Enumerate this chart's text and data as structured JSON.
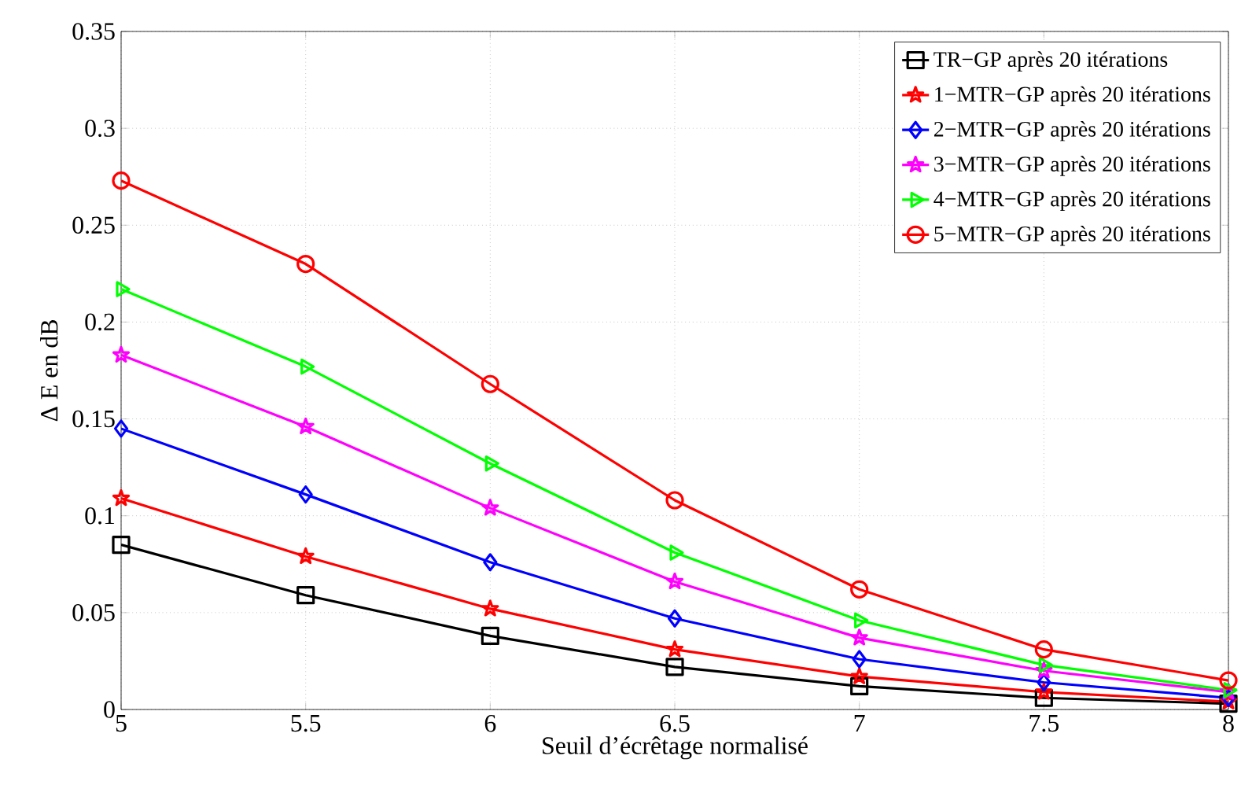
{
  "chart_data": {
    "type": "line",
    "xlabel": "Seuil d’écrêtage normalisé",
    "ylabel": "Δ E en dB",
    "x": [
      5,
      5.5,
      6,
      6.5,
      7,
      7.5,
      8
    ],
    "xlim": [
      5,
      8
    ],
    "xticks": [
      5,
      5.5,
      6,
      6.5,
      7,
      7.5,
      8
    ],
    "ylim": [
      0,
      0.35
    ],
    "yticks": [
      0,
      0.05,
      0.1,
      0.15,
      0.2,
      0.25,
      0.3,
      0.35
    ],
    "grid": true,
    "legend": "top right",
    "line_style": "solid",
    "series": [
      {
        "name": "TR−GP après 20 itérations",
        "color": "#000000",
        "marker": "square",
        "values": [
          0.085,
          0.059,
          0.038,
          0.022,
          0.012,
          0.006,
          0.003
        ]
      },
      {
        "name": "1−MTR−GP après 20 itérations",
        "color": "#ff0000",
        "marker": "star",
        "values": [
          0.109,
          0.079,
          0.052,
          0.031,
          0.017,
          0.009,
          0.004
        ]
      },
      {
        "name": "2−MTR−GP après 20 itérations",
        "color": "#0000ff",
        "marker": "diamond",
        "values": [
          0.145,
          0.111,
          0.076,
          0.047,
          0.026,
          0.014,
          0.006
        ]
      },
      {
        "name": "3−MTR−GP après 20 itérations",
        "color": "#ff00ff",
        "marker": "star",
        "values": [
          0.183,
          0.146,
          0.104,
          0.066,
          0.037,
          0.02,
          0.009
        ]
      },
      {
        "name": "4−MTR−GP après 20 itérations",
        "color": "#00ff00",
        "marker": "triangle",
        "values": [
          0.217,
          0.177,
          0.127,
          0.081,
          0.046,
          0.023,
          0.01
        ]
      },
      {
        "name": "5−MTR−GP après 20 itérations",
        "color": "#ff0000",
        "marker": "circle",
        "values": [
          0.273,
          0.23,
          0.168,
          0.108,
          0.062,
          0.031,
          0.015
        ]
      }
    ]
  }
}
